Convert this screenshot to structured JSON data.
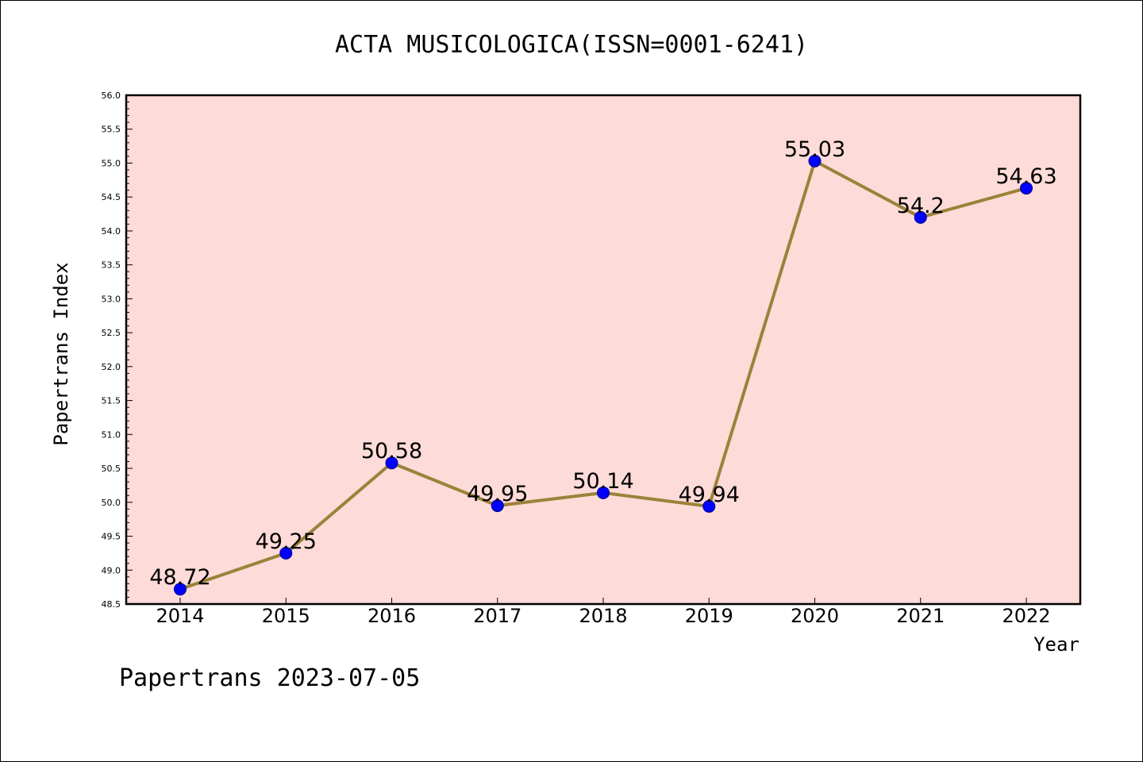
{
  "chart_data": {
    "type": "line",
    "title": "ACTA MUSICOLOGICA(ISSN=0001-6241)",
    "xlabel": "Year",
    "ylabel": "Papertrans Index",
    "ylim": [
      48.5,
      56.0
    ],
    "ytick_step": 0.5,
    "categories": [
      "2014",
      "2015",
      "2016",
      "2017",
      "2018",
      "2019",
      "2020",
      "2021",
      "2022"
    ],
    "values": [
      48.72,
      49.25,
      50.58,
      49.95,
      50.14,
      49.94,
      55.03,
      54.2,
      54.63
    ],
    "data_labels": [
      "48.72",
      "49.25",
      "50.58",
      "49.95",
      "50.14",
      "49.94",
      "55.03",
      "54.2",
      "54.63"
    ],
    "grid": false,
    "legend": "none",
    "colors": {
      "plot_background": "#fddbd8",
      "line": "#9b8239",
      "marker": "#0000ff",
      "marker_edge": "#00008b"
    }
  },
  "footer": "Papertrans 2023-07-05"
}
